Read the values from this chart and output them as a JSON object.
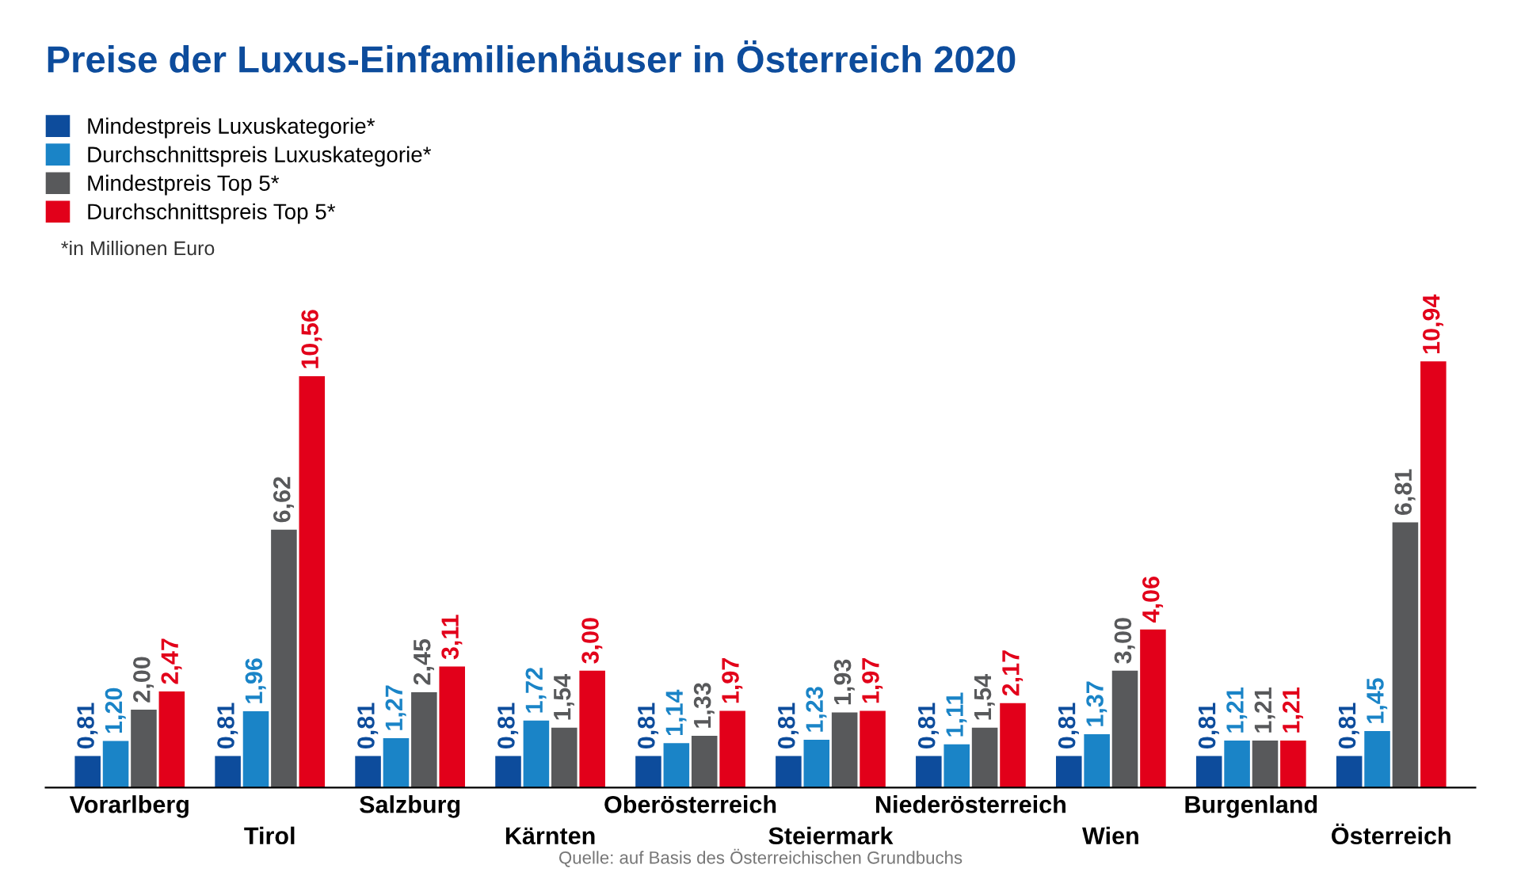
{
  "chart_data": {
    "type": "bar",
    "title": "Preise der Luxus-Einfamilienhäuser in Österreich 2020",
    "categories": [
      "Vorarlberg",
      "Tirol",
      "Salzburg",
      "Kärnten",
      "Oberösterreich",
      "Steiermark",
      "Niederösterreich",
      "Wien",
      "Burgenland",
      "Österreich"
    ],
    "series": [
      {
        "name": "Mindestpreis Luxuskategorie*",
        "color": "#0d4c9c",
        "values": [
          0.81,
          0.81,
          0.81,
          0.81,
          0.81,
          0.81,
          0.81,
          0.81,
          0.81,
          0.81
        ],
        "value_labels": [
          "0,81",
          "0,81",
          "0,81",
          "0,81",
          "0,81",
          "0,81",
          "0,81",
          "0,81",
          "0,81",
          "0,81"
        ]
      },
      {
        "name": "Durchschnittspreis Luxuskategorie*",
        "color": "#1a84c7",
        "values": [
          1.2,
          1.96,
          1.27,
          1.72,
          1.14,
          1.23,
          1.11,
          1.37,
          1.21,
          1.45
        ],
        "value_labels": [
          "1,20",
          "1,96",
          "1,27",
          "1,72",
          "1,14",
          "1,23",
          "1,11",
          "1,37",
          "1,21",
          "1,45"
        ]
      },
      {
        "name": "Mindestpreis Top 5*",
        "color": "#58595b",
        "values": [
          2.0,
          6.62,
          2.45,
          1.54,
          1.33,
          1.93,
          1.54,
          3.0,
          1.21,
          6.81
        ],
        "value_labels": [
          "2,00",
          "6,62",
          "2,45",
          "1,54",
          "1,33",
          "1,93",
          "1,54",
          "3,00",
          "1,21",
          "6,81"
        ]
      },
      {
        "name": "Durchschnittspreis Top 5*",
        "color": "#e2001a",
        "values": [
          2.47,
          10.56,
          3.11,
          3.0,
          1.97,
          1.97,
          2.17,
          4.06,
          1.21,
          10.94
        ],
        "value_labels": [
          "2,47",
          "10,56",
          "3,11",
          "3,00",
          "1,97",
          "1,97",
          "2,17",
          "4,06",
          "1,21",
          "10,94"
        ]
      }
    ],
    "legend": "top left",
    "tick_labels": "x",
    "grid": false,
    "annotations": [
      "*in Millionen Euro",
      "Quelle: auf Basis des Österreichischen Grundbuchs"
    ]
  }
}
